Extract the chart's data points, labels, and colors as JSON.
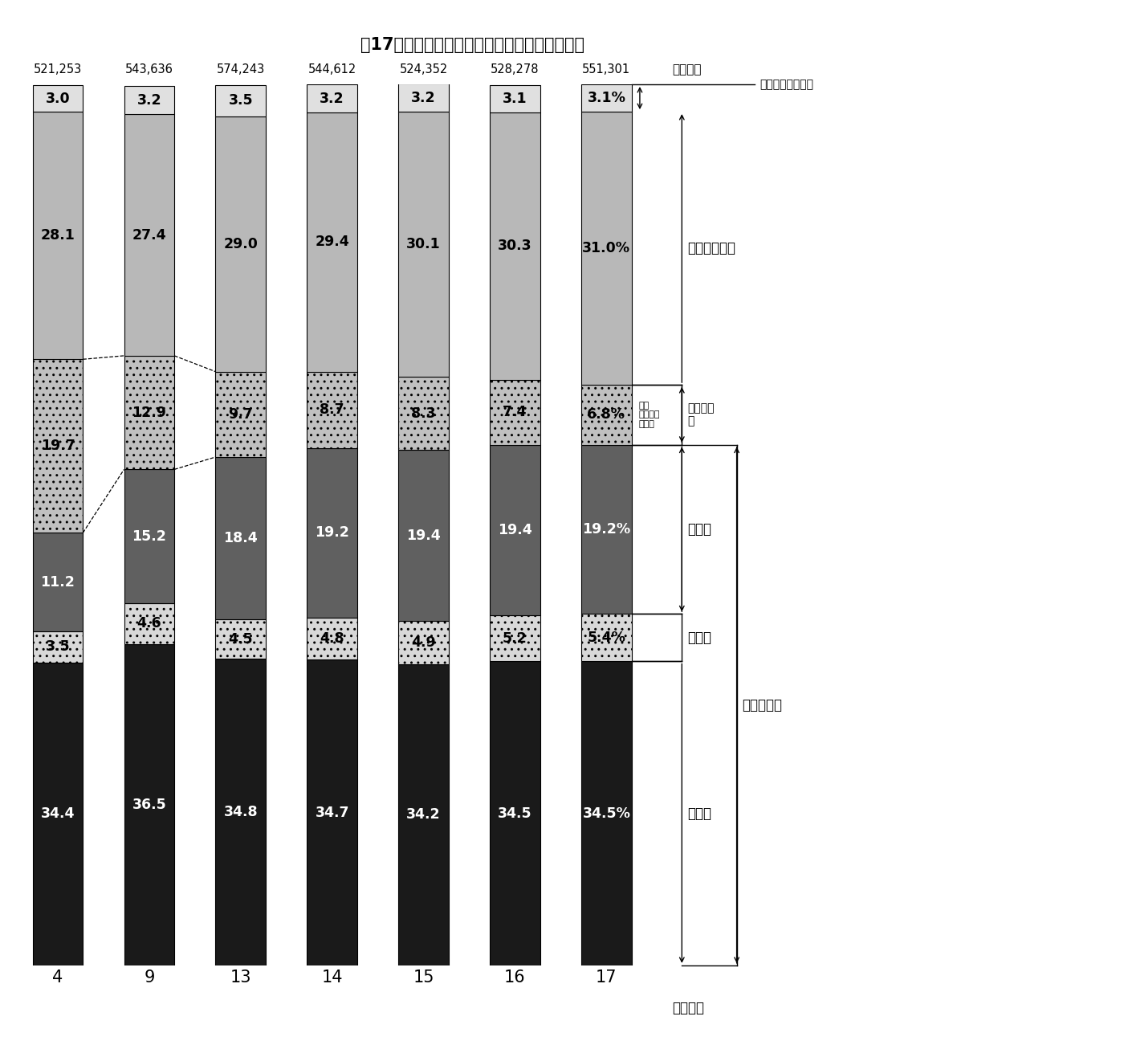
{
  "title": "第17図　一般財源充当額の性質別構成比の推移",
  "years": [
    "4",
    "9",
    "13",
    "14",
    "15",
    "16",
    "17"
  ],
  "totals": [
    "521,253",
    "543,636",
    "574,243",
    "544,612",
    "524,352",
    "528,278",
    "551,301"
  ],
  "unit": "（億円）",
  "xlabel": "（年度）",
  "segments": {
    "jinkenhi": [
      34.4,
      36.5,
      34.8,
      34.7,
      34.2,
      34.5,
      34.5
    ],
    "fujohi": [
      3.5,
      4.6,
      4.5,
      4.8,
      4.9,
      5.2,
      5.4
    ],
    "kokaihi": [
      11.2,
      15.2,
      18.4,
      19.2,
      19.4,
      19.4,
      19.2
    ],
    "toshi": [
      19.7,
      12.9,
      9.7,
      8.7,
      8.3,
      7.4,
      6.8
    ],
    "sonota": [
      28.1,
      27.4,
      29.0,
      29.4,
      30.1,
      30.3,
      31.0
    ],
    "kurikoshi": [
      3.0,
      3.2,
      3.5,
      3.2,
      3.2,
      3.1,
      3.1
    ]
  },
  "colors": {
    "jinkenhi": "#1a1a1a",
    "fujohi": "#d8d8d8",
    "kokaihi": "#606060",
    "toshi": "#c0c0c0",
    "sonota": "#b8b8b8",
    "kurikoshi": "#e0e0e0"
  },
  "hatches": {
    "jinkenhi": "",
    "fujohi": "..",
    "kokaihi": "",
    "toshi": "..",
    "sonota": "",
    "kurikoshi": ""
  },
  "label_colors": {
    "jinkenhi": "#ffffff",
    "fujohi": "#000000",
    "kokaihi": "#ffffff",
    "toshi": "#000000",
    "sonota": "#000000",
    "kurikoshi": "#000000"
  },
  "annotations": {
    "kurikoshi": "翌年度への繰越額",
    "sonota": "その他の経費",
    "toshi_outer": "投資的経\n費",
    "toshi_inner": "うち\n普通建設\n事業費",
    "kokaihi": "公債費",
    "fujohi": "扶助費",
    "jinkenhi": "人件費",
    "gimutek": "義務的経費"
  }
}
